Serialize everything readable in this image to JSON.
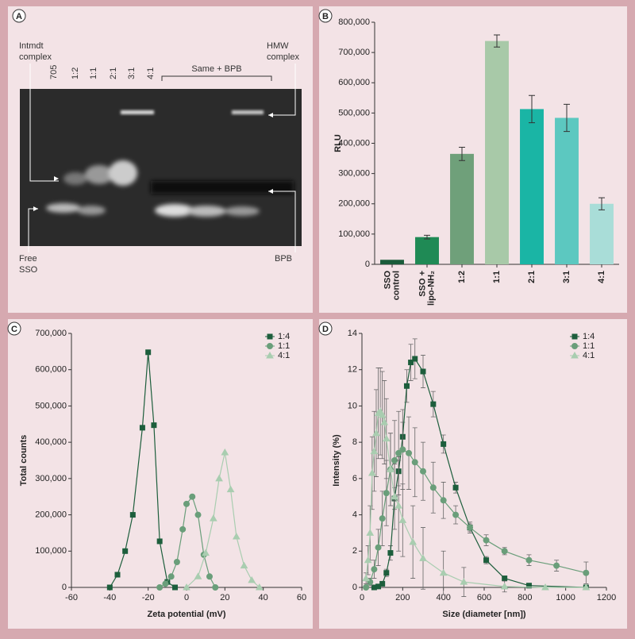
{
  "gel_panel": {
    "panel_label": "A",
    "lane_labels": [
      "705",
      "1:2",
      "1:1",
      "2:1",
      "3:1",
      "4:1"
    ],
    "bracket_label": "Same + BPB",
    "intmdt_label": [
      "Intmdt",
      "complex"
    ],
    "hmw_label": [
      "HMW",
      "complex"
    ],
    "free_label": [
      "Free",
      "SSO"
    ],
    "bpb_label": "BPB"
  },
  "chart_data": [
    {
      "type": "bar",
      "panel_label": "B",
      "y_label": "RLU",
      "categories": [
        [
          "SSO",
          "control"
        ],
        [
          "SSO +",
          "lipo-NH₂"
        ],
        "1:2",
        "1:1",
        "2:1",
        "3:1",
        "4:1"
      ],
      "values": [
        15000,
        90000,
        365000,
        738000,
        513000,
        484000,
        200000
      ],
      "errors": [
        0,
        6000,
        22000,
        20000,
        45000,
        45000,
        20000
      ],
      "colors": [
        "#1a5c3a",
        "#1f8a55",
        "#6fa07a",
        "#a8c9a8",
        "#1ab5a5",
        "#5cc8c0",
        "#a9ddd8"
      ],
      "ylim": [
        0,
        800000
      ],
      "yticks": [
        0,
        {
          "value": 100000,
          "label": "100,000"
        },
        {
          "value": 200000,
          "label": "200,000"
        },
        {
          "value": 300000,
          "label": "300,000"
        },
        {
          "value": 400000,
          "label": "400,000"
        },
        {
          "value": 500000,
          "label": "500,000"
        },
        {
          "value": 600000,
          "label": "600,000"
        },
        {
          "value": 700000,
          "label": "700,000"
        },
        {
          "value": 800000,
          "label": "800,000"
        }
      ]
    },
    {
      "type": "line",
      "panel_label": "C",
      "x_label": "Zeta potential (mV)",
      "y_label": "Total counts",
      "legend": "top-right",
      "xlim": [
        -60,
        60
      ],
      "xticks": [
        -60,
        -40,
        -20,
        0,
        20,
        40,
        60
      ],
      "ylim": [
        0,
        700000
      ],
      "yticks": [
        0,
        {
          "value": 100000,
          "label": "100,000"
        },
        {
          "value": 200000,
          "label": "200,000"
        },
        {
          "value": 300000,
          "label": "300,000"
        },
        {
          "value": 400000,
          "label": "400,000"
        },
        {
          "value": 500000,
          "label": "500,000"
        },
        {
          "value": 600000,
          "label": "600,000"
        },
        {
          "value": 700000,
          "label": "700,000"
        }
      ],
      "series": [
        {
          "name": "1:4",
          "color": "#1d5e3c",
          "marker": "square",
          "x": [
            -40,
            -36,
            -32,
            -28,
            -23,
            -20,
            -17,
            -14,
            -10,
            -6
          ],
          "values": [
            0,
            35000,
            100000,
            200000,
            440000,
            648000,
            447000,
            127000,
            15000,
            0
          ]
        },
        {
          "name": "1:1",
          "color": "#6a9e7a",
          "marker": "circle",
          "x": [
            -14,
            -11,
            -8,
            -5,
            -2,
            0,
            3,
            6,
            9,
            12,
            15
          ],
          "values": [
            0,
            10000,
            30000,
            70000,
            160000,
            230000,
            250000,
            200000,
            90000,
            30000,
            0
          ]
        },
        {
          "name": "4:1",
          "color": "#a9cdb0",
          "marker": "triangle",
          "x": [
            0,
            6,
            10,
            14,
            17,
            20,
            23,
            26,
            30,
            34,
            38
          ],
          "values": [
            0,
            30000,
            95000,
            190000,
            300000,
            372000,
            270000,
            140000,
            60000,
            20000,
            0
          ]
        }
      ]
    },
    {
      "type": "line",
      "panel_label": "D",
      "x_label": "Size (diameter [nm])",
      "y_label": "Intensity (%)",
      "legend": "top-right",
      "xlim": [
        0,
        1200
      ],
      "xticks": [
        0,
        200,
        400,
        600,
        800,
        1000,
        1200
      ],
      "ylim": [
        0,
        14
      ],
      "yticks": [
        0,
        2,
        4,
        6,
        8,
        10,
        12,
        14
      ],
      "series": [
        {
          "name": "1:4",
          "color": "#1d5e3c",
          "marker": "square",
          "x": [
            60,
            80,
            100,
            120,
            140,
            160,
            180,
            200,
            220,
            240,
            260,
            300,
            350,
            400,
            460,
            530,
            610,
            700,
            820,
            1100
          ],
          "values": [
            0,
            0.05,
            0.2,
            0.8,
            1.9,
            4.9,
            6.4,
            8.3,
            11.1,
            12.4,
            12.6,
            11.9,
            10.1,
            7.9,
            5.5,
            3.3,
            1.5,
            0.5,
            0.1,
            0
          ],
          "errors": [
            0,
            0,
            0.1,
            0.2,
            0.4,
            0.6,
            0.8,
            0.8,
            0.9,
            1,
            1.1,
            0.9,
            0.7,
            0.5,
            0.3,
            0.2,
            0.2,
            0.1,
            0.1,
            0
          ]
        },
        {
          "name": "1:1",
          "color": "#6a9e7a",
          "marker": "circle",
          "x": [
            20,
            40,
            60,
            80,
            100,
            120,
            140,
            160,
            180,
            200,
            230,
            260,
            300,
            350,
            400,
            460,
            530,
            610,
            700,
            820,
            955,
            1100
          ],
          "values": [
            0,
            0.3,
            1,
            2.2,
            3.8,
            5.2,
            6.5,
            7,
            7.4,
            7.6,
            7.4,
            6.9,
            6.4,
            5.5,
            4.8,
            4,
            3.3,
            2.6,
            2,
            1.5,
            1.2,
            0.8
          ],
          "errors": [
            0,
            0.2,
            0.5,
            1,
            1.5,
            1.8,
            2,
            2.2,
            2.3,
            2.2,
            2,
            1.9,
            1.6,
            1.4,
            1,
            0.5,
            0.3,
            0.3,
            0.2,
            0.3,
            0.3,
            0.6
          ]
        },
        {
          "name": "4:1",
          "color": "#a9cdb0",
          "marker": "triangle",
          "x": [
            20,
            30,
            40,
            50,
            60,
            70,
            80,
            90,
            100,
            110,
            120,
            140,
            160,
            180,
            200,
            250,
            300,
            400,
            500,
            700,
            900,
            1100
          ],
          "values": [
            0.5,
            1.5,
            3,
            6.3,
            7.5,
            8.5,
            9.6,
            9.7,
            9.5,
            9.1,
            8.2,
            6.5,
            5,
            4.5,
            3.7,
            2.5,
            1.6,
            0.8,
            0.3,
            0.05,
            0,
            0
          ],
          "errors": [
            0.3,
            0.8,
            1.5,
            2,
            2.2,
            2.4,
            2.5,
            2.4,
            2.4,
            2.3,
            2.2,
            2,
            1.8,
            2.5,
            2,
            2,
            1.7,
            1.2,
            0.8,
            0.3,
            0,
            0
          ]
        }
      ]
    }
  ]
}
